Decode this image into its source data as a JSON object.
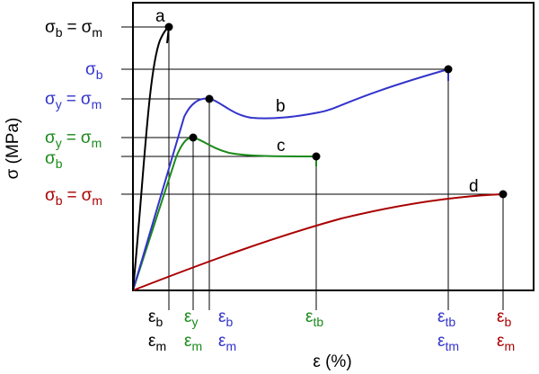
{
  "relation": "=",
  "axes": {
    "y_title": "σ (MPa)",
    "x_title": "ε (%)"
  },
  "curves": [
    {
      "label": "a",
      "color": "#000000"
    },
    {
      "label": "b",
      "color": "#3333cc"
    },
    {
      "label": "c",
      "color": "#1a8a1a"
    },
    {
      "label": "d",
      "color": "#aa0000"
    }
  ],
  "y_labels": [
    {
      "color": "#000000",
      "terms": [
        {
          "symbol": "σ",
          "sub": "b"
        },
        {
          "symbol": "σ",
          "sub": "m"
        }
      ]
    },
    {
      "color": "#3333cc",
      "terms": [
        {
          "symbol": "σ",
          "sub": "b"
        }
      ]
    },
    {
      "color": "#3333cc",
      "terms": [
        {
          "symbol": "σ",
          "sub": "y"
        },
        {
          "symbol": "σ",
          "sub": "m"
        }
      ]
    },
    {
      "color": "#1a8a1a",
      "terms": [
        {
          "symbol": "σ",
          "sub": "y"
        },
        {
          "symbol": "σ",
          "sub": "m"
        }
      ]
    },
    {
      "color": "#1a8a1a",
      "terms": [
        {
          "symbol": "σ",
          "sub": "b"
        }
      ]
    },
    {
      "color": "#aa0000",
      "terms": [
        {
          "symbol": "σ",
          "sub": "b"
        },
        {
          "symbol": "σ",
          "sub": "m"
        }
      ]
    }
  ],
  "x_labels": [
    {
      "color": "#000000",
      "rows": [
        {
          "symbol": "ε",
          "sub": "b"
        },
        {
          "symbol": "ε",
          "sub": "m"
        }
      ]
    },
    {
      "color": "#1a8a1a",
      "rows": [
        {
          "symbol": "ε",
          "sub": "y"
        },
        {
          "symbol": "ε",
          "sub": "m"
        }
      ]
    },
    {
      "color": "#3333cc",
      "rows": [
        {
          "symbol": "ε",
          "sub": "b"
        },
        {
          "symbol": "ε",
          "sub": "m"
        }
      ]
    },
    {
      "color": "#1a8a1a",
      "rows": [
        {
          "symbol": "ε",
          "sub": "tb"
        }
      ]
    },
    {
      "color": "#3333cc",
      "rows": [
        {
          "symbol": "ε",
          "sub": "tb"
        },
        {
          "symbol": "ε",
          "sub": "tm"
        }
      ]
    },
    {
      "color": "#aa0000",
      "rows": [
        {
          "symbol": "ε",
          "sub": "b"
        },
        {
          "symbol": "ε",
          "sub": "m"
        }
      ]
    }
  ]
}
